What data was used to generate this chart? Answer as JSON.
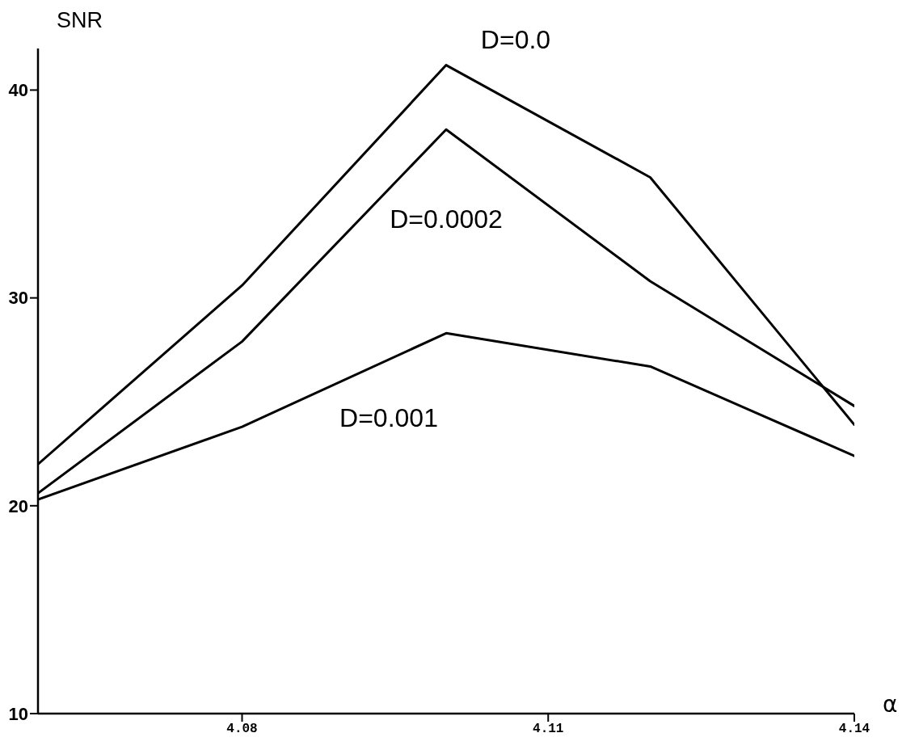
{
  "chart_data": {
    "type": "line",
    "xlabel": "α",
    "ylabel": "SNR",
    "x": [
      4.06,
      4.08,
      4.1,
      4.12,
      4.14
    ],
    "xlim": [
      4.06,
      4.14
    ],
    "xticks": [
      4.08,
      4.11,
      4.14
    ],
    "ylim": [
      10,
      42
    ],
    "yticks": [
      10,
      20,
      30,
      40
    ],
    "grid": false,
    "legend": false,
    "marker": "none",
    "line_style": "solid",
    "series": [
      {
        "name": "D=0.0",
        "color": "#000000",
        "values": [
          22.0,
          30.6,
          41.2,
          35.8,
          23.9
        ]
      },
      {
        "name": "D=0.0002",
        "color": "#000000",
        "values": [
          20.6,
          27.9,
          38.1,
          30.8,
          24.8
        ]
      },
      {
        "name": "D=0.001",
        "color": "#000000",
        "values": [
          20.3,
          23.8,
          28.3,
          26.7,
          22.4
        ]
      }
    ]
  }
}
